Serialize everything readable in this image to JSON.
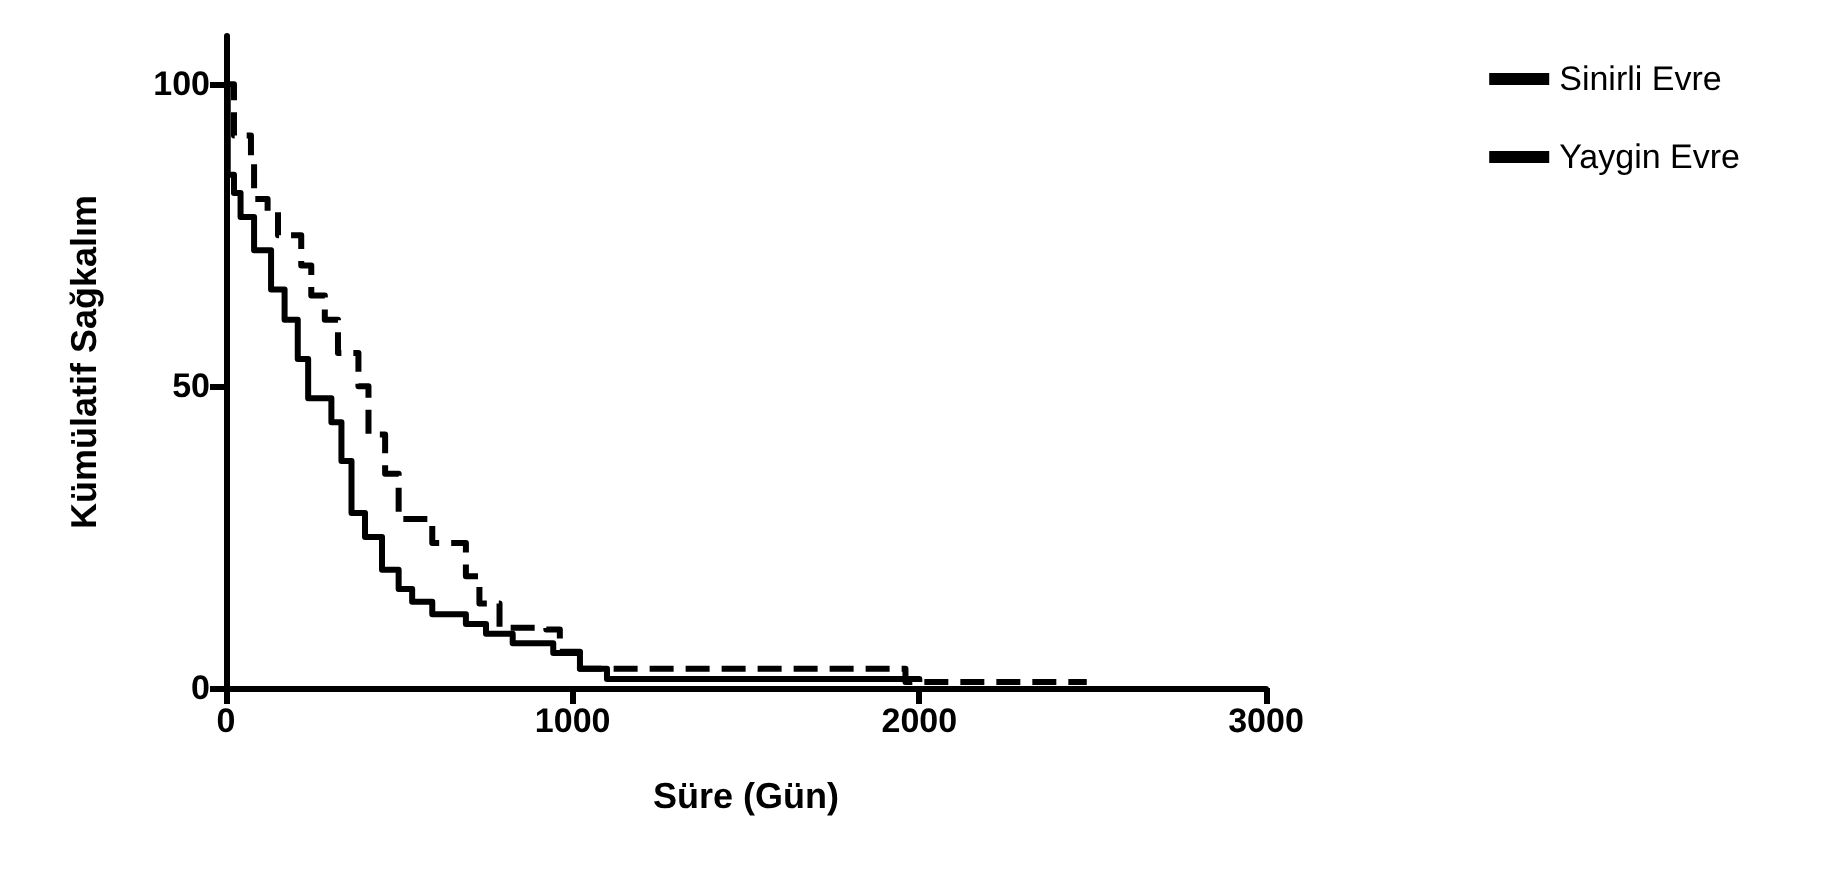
{
  "chart_data": {
    "type": "step",
    "xlabel": "Süre (Gün)",
    "ylabel": "Kümülatif Sağkalım",
    "xlim": [
      0,
      3000
    ],
    "xticks": [
      0,
      1000,
      2000,
      3000
    ],
    "ylim": [
      0,
      108
    ],
    "yticks": [
      0,
      50,
      100
    ],
    "grid": false,
    "legend": "top right",
    "marker": "none",
    "series": [
      {
        "name": "Sinirli Evre",
        "color": "#000000",
        "line_style": "dashed",
        "x": [
          0,
          23,
          72,
          81,
          120,
          150,
          217,
          246,
          285,
          323,
          382,
          411,
          459,
          498,
          595,
          692,
          731,
          789,
          924,
          963,
          1021,
          1109,
          1960,
          2483
        ],
        "values": [
          100,
          91.5,
          87,
          81,
          79,
          75,
          70,
          65,
          61,
          55.5,
          50,
          42,
          35.5,
          28,
          24,
          18.5,
          14,
          10,
          9.7,
          6,
          3.2,
          3.2,
          1,
          1
        ]
      },
      {
        "name": "Yaygin Evre",
        "color": "#000000",
        "line_style": "solid",
        "x": [
          0,
          5,
          23,
          42,
          81,
          130,
          169,
          207,
          237,
          304,
          333,
          362,
          401,
          450,
          498,
          537,
          595,
          692,
          750,
          827,
          944,
          1021,
          1099,
          2000
        ],
        "values": [
          100,
          85,
          82,
          78,
          72.5,
          66,
          61,
          54.5,
          48,
          44,
          37.6,
          29,
          25,
          19.6,
          16.4,
          14.3,
          12.2,
          10.6,
          9,
          7.4,
          5.8,
          3.2,
          1.5,
          1
        ]
      }
    ]
  }
}
